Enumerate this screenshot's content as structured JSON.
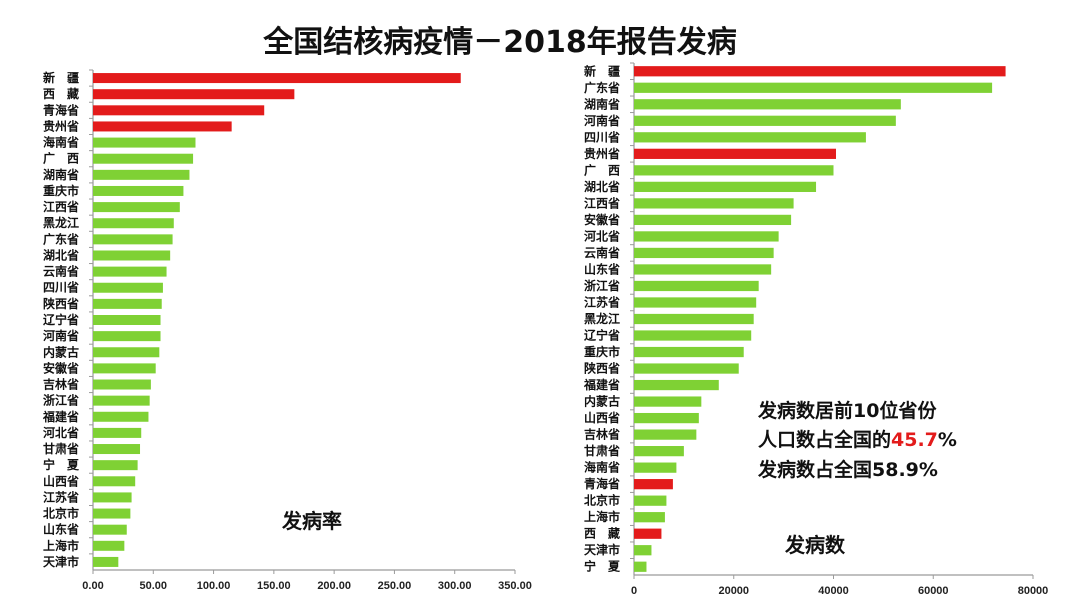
{
  "page_title": "全国结核病疫情－2018年报告发病",
  "colors": {
    "highlight": "#e31b1b",
    "normal": "#7fd134",
    "axis": "#9a9a9a"
  },
  "chart_data": [
    {
      "type": "bar",
      "orientation": "horizontal",
      "label": "发病率",
      "categories": [
        "新　疆",
        "西　藏",
        "青海省",
        "贵州省",
        "海南省",
        "广　西",
        "湖南省",
        "重庆市",
        "江西省",
        "黑龙江",
        "广东省",
        "湖北省",
        "云南省",
        "四川省",
        "陕西省",
        "辽宁省",
        "河南省",
        "内蒙古",
        "安徽省",
        "吉林省",
        "浙江省",
        "福建省",
        "河北省",
        "甘肃省",
        "宁　夏",
        "山西省",
        "江苏省",
        "北京市",
        "山东省",
        "上海市",
        "天津市"
      ],
      "values": [
        305,
        167,
        142,
        115,
        85,
        83,
        80,
        75,
        72,
        67,
        66,
        64,
        61,
        58,
        57,
        56,
        56,
        55,
        52,
        48,
        47,
        46,
        40,
        39,
        37,
        35,
        32,
        31,
        28,
        26,
        21
      ],
      "highlighted": [
        "新　疆",
        "西　藏",
        "青海省",
        "贵州省"
      ],
      "xlim": [
        0,
        350
      ],
      "ticks": [
        "0.00",
        "50.00",
        "100.00",
        "150.00",
        "200.00",
        "250.00",
        "300.00",
        "350.00"
      ]
    },
    {
      "type": "bar",
      "orientation": "horizontal",
      "label": "发病数",
      "categories": [
        "新　疆",
        "广东省",
        "湖南省",
        "河南省",
        "四川省",
        "贵州省",
        "广　西",
        "湖北省",
        "江西省",
        "安徽省",
        "河北省",
        "云南省",
        "山东省",
        "浙江省",
        "江苏省",
        "黑龙江",
        "辽宁省",
        "重庆市",
        "陕西省",
        "福建省",
        "内蒙古",
        "山西省",
        "吉林省",
        "甘肃省",
        "海南省",
        "青海省",
        "北京市",
        "上海市",
        "西　藏",
        "天津市",
        "宁　夏"
      ],
      "values": [
        74500,
        71800,
        53500,
        52500,
        46500,
        40500,
        40000,
        36500,
        32000,
        31500,
        29000,
        28000,
        27500,
        25000,
        24500,
        24000,
        23500,
        22000,
        21000,
        17000,
        13500,
        13000,
        12500,
        10000,
        8500,
        7800,
        6500,
        6200,
        5500,
        3500,
        2500
      ],
      "highlighted": [
        "新　疆",
        "贵州省",
        "青海省",
        "西　藏"
      ],
      "xlim": [
        0,
        80000
      ],
      "ticks": [
        "0",
        "20000",
        "40000",
        "60000",
        "80000"
      ]
    }
  ],
  "annotation": {
    "line1": "发病数居前10位省份",
    "line2_pre": "人口数占全国的",
    "line2_hl": "45.7",
    "line2_post": "%",
    "line3": "发病数占全国58.9%"
  }
}
